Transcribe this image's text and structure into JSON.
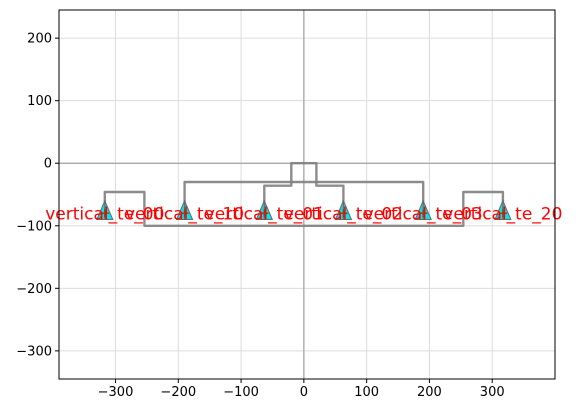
{
  "chart_data": {
    "type": "scatter",
    "title": "",
    "xlabel": "",
    "ylabel": "",
    "xlim": [
      -390,
      400
    ],
    "ylim": [
      -345,
      245
    ],
    "xticks": [
      -300,
      -200,
      -100,
      0,
      100,
      200,
      300
    ],
    "yticks": [
      200,
      100,
      0,
      -100,
      -200,
      -300
    ],
    "grid": true,
    "legend": "none",
    "colors": {
      "route": "#808080",
      "port_fill": "#00e5ee",
      "port_edge": "#696969",
      "port_marker": "#8b4513",
      "label": "#ff0000",
      "axis_line": "#a0a0a0",
      "grid": "#dcdcdc"
    },
    "ports": [
      {
        "label": "vertical_te_00",
        "x": -317,
        "y": -80
      },
      {
        "label": "vertical_te_10",
        "x": -190,
        "y": -80
      },
      {
        "label": "vertical_te_01",
        "x": -63,
        "y": -80
      },
      {
        "label": "vertical_te_02",
        "x": 63,
        "y": -80
      },
      {
        "label": "vertical_te_03",
        "x": 190,
        "y": -80
      },
      {
        "label": "vertical_te_20",
        "x": 317,
        "y": -80
      }
    ],
    "routes": [
      [
        [
          -317,
          -80
        ],
        [
          -317,
          -46
        ],
        [
          -254,
          -46
        ],
        [
          -254,
          -100
        ],
        [
          254,
          -100
        ],
        [
          254,
          -46
        ],
        [
          317,
          -46
        ],
        [
          317,
          -80
        ]
      ],
      [
        [
          -190,
          -80
        ],
        [
          -190,
          -30
        ],
        [
          190,
          -30
        ],
        [
          190,
          -80
        ]
      ],
      [
        [
          -63,
          -80
        ],
        [
          -63,
          -36
        ],
        [
          -20,
          -36
        ],
        [
          -20,
          0
        ],
        [
          20,
          0
        ],
        [
          20,
          -36
        ],
        [
          63,
          -36
        ],
        [
          63,
          -80
        ]
      ]
    ]
  }
}
